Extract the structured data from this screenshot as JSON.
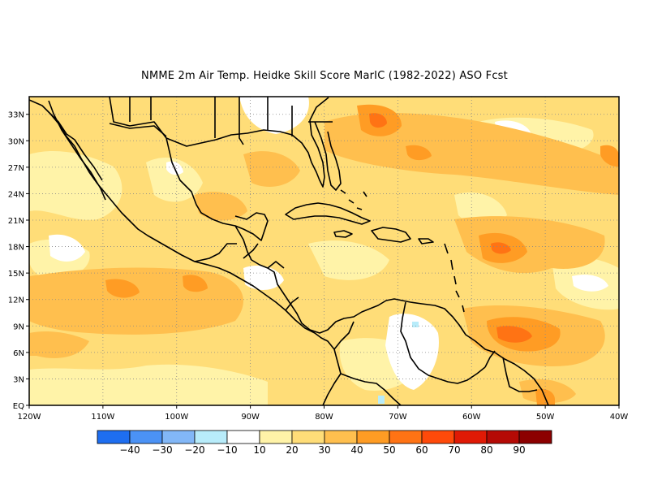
{
  "title": "NMME  2m Air Temp. Heidke Skill Score MarIC (1982-2022) ASO Fcst",
  "map": {
    "lon_range": [
      -120,
      -40
    ],
    "lat_range": [
      0,
      35
    ],
    "x_ticks": [
      "120W",
      "110W",
      "100W",
      "90W",
      "80W",
      "70W",
      "60W",
      "50W",
      "40W"
    ],
    "y_ticks": [
      "EQ",
      "3N",
      "6N",
      "9N",
      "12N",
      "15N",
      "18N",
      "21N",
      "24N",
      "27N",
      "30N",
      "33N"
    ],
    "grid": "dotted"
  },
  "colorbar": {
    "labels": [
      "-40",
      "-30",
      "-20",
      "-10",
      "10",
      "20",
      "30",
      "40",
      "50",
      "60",
      "70",
      "80",
      "90"
    ],
    "colors": [
      "#1e6ef0",
      "#4b92f5",
      "#82b7f7",
      "#b8ecfa",
      "#ffffff",
      "#fff3a8",
      "#ffdd78",
      "#ffbf4e",
      "#ff9c24",
      "#ff7314",
      "#ff4a0a",
      "#e01a05",
      "#b50a05",
      "#8c0000"
    ]
  }
}
